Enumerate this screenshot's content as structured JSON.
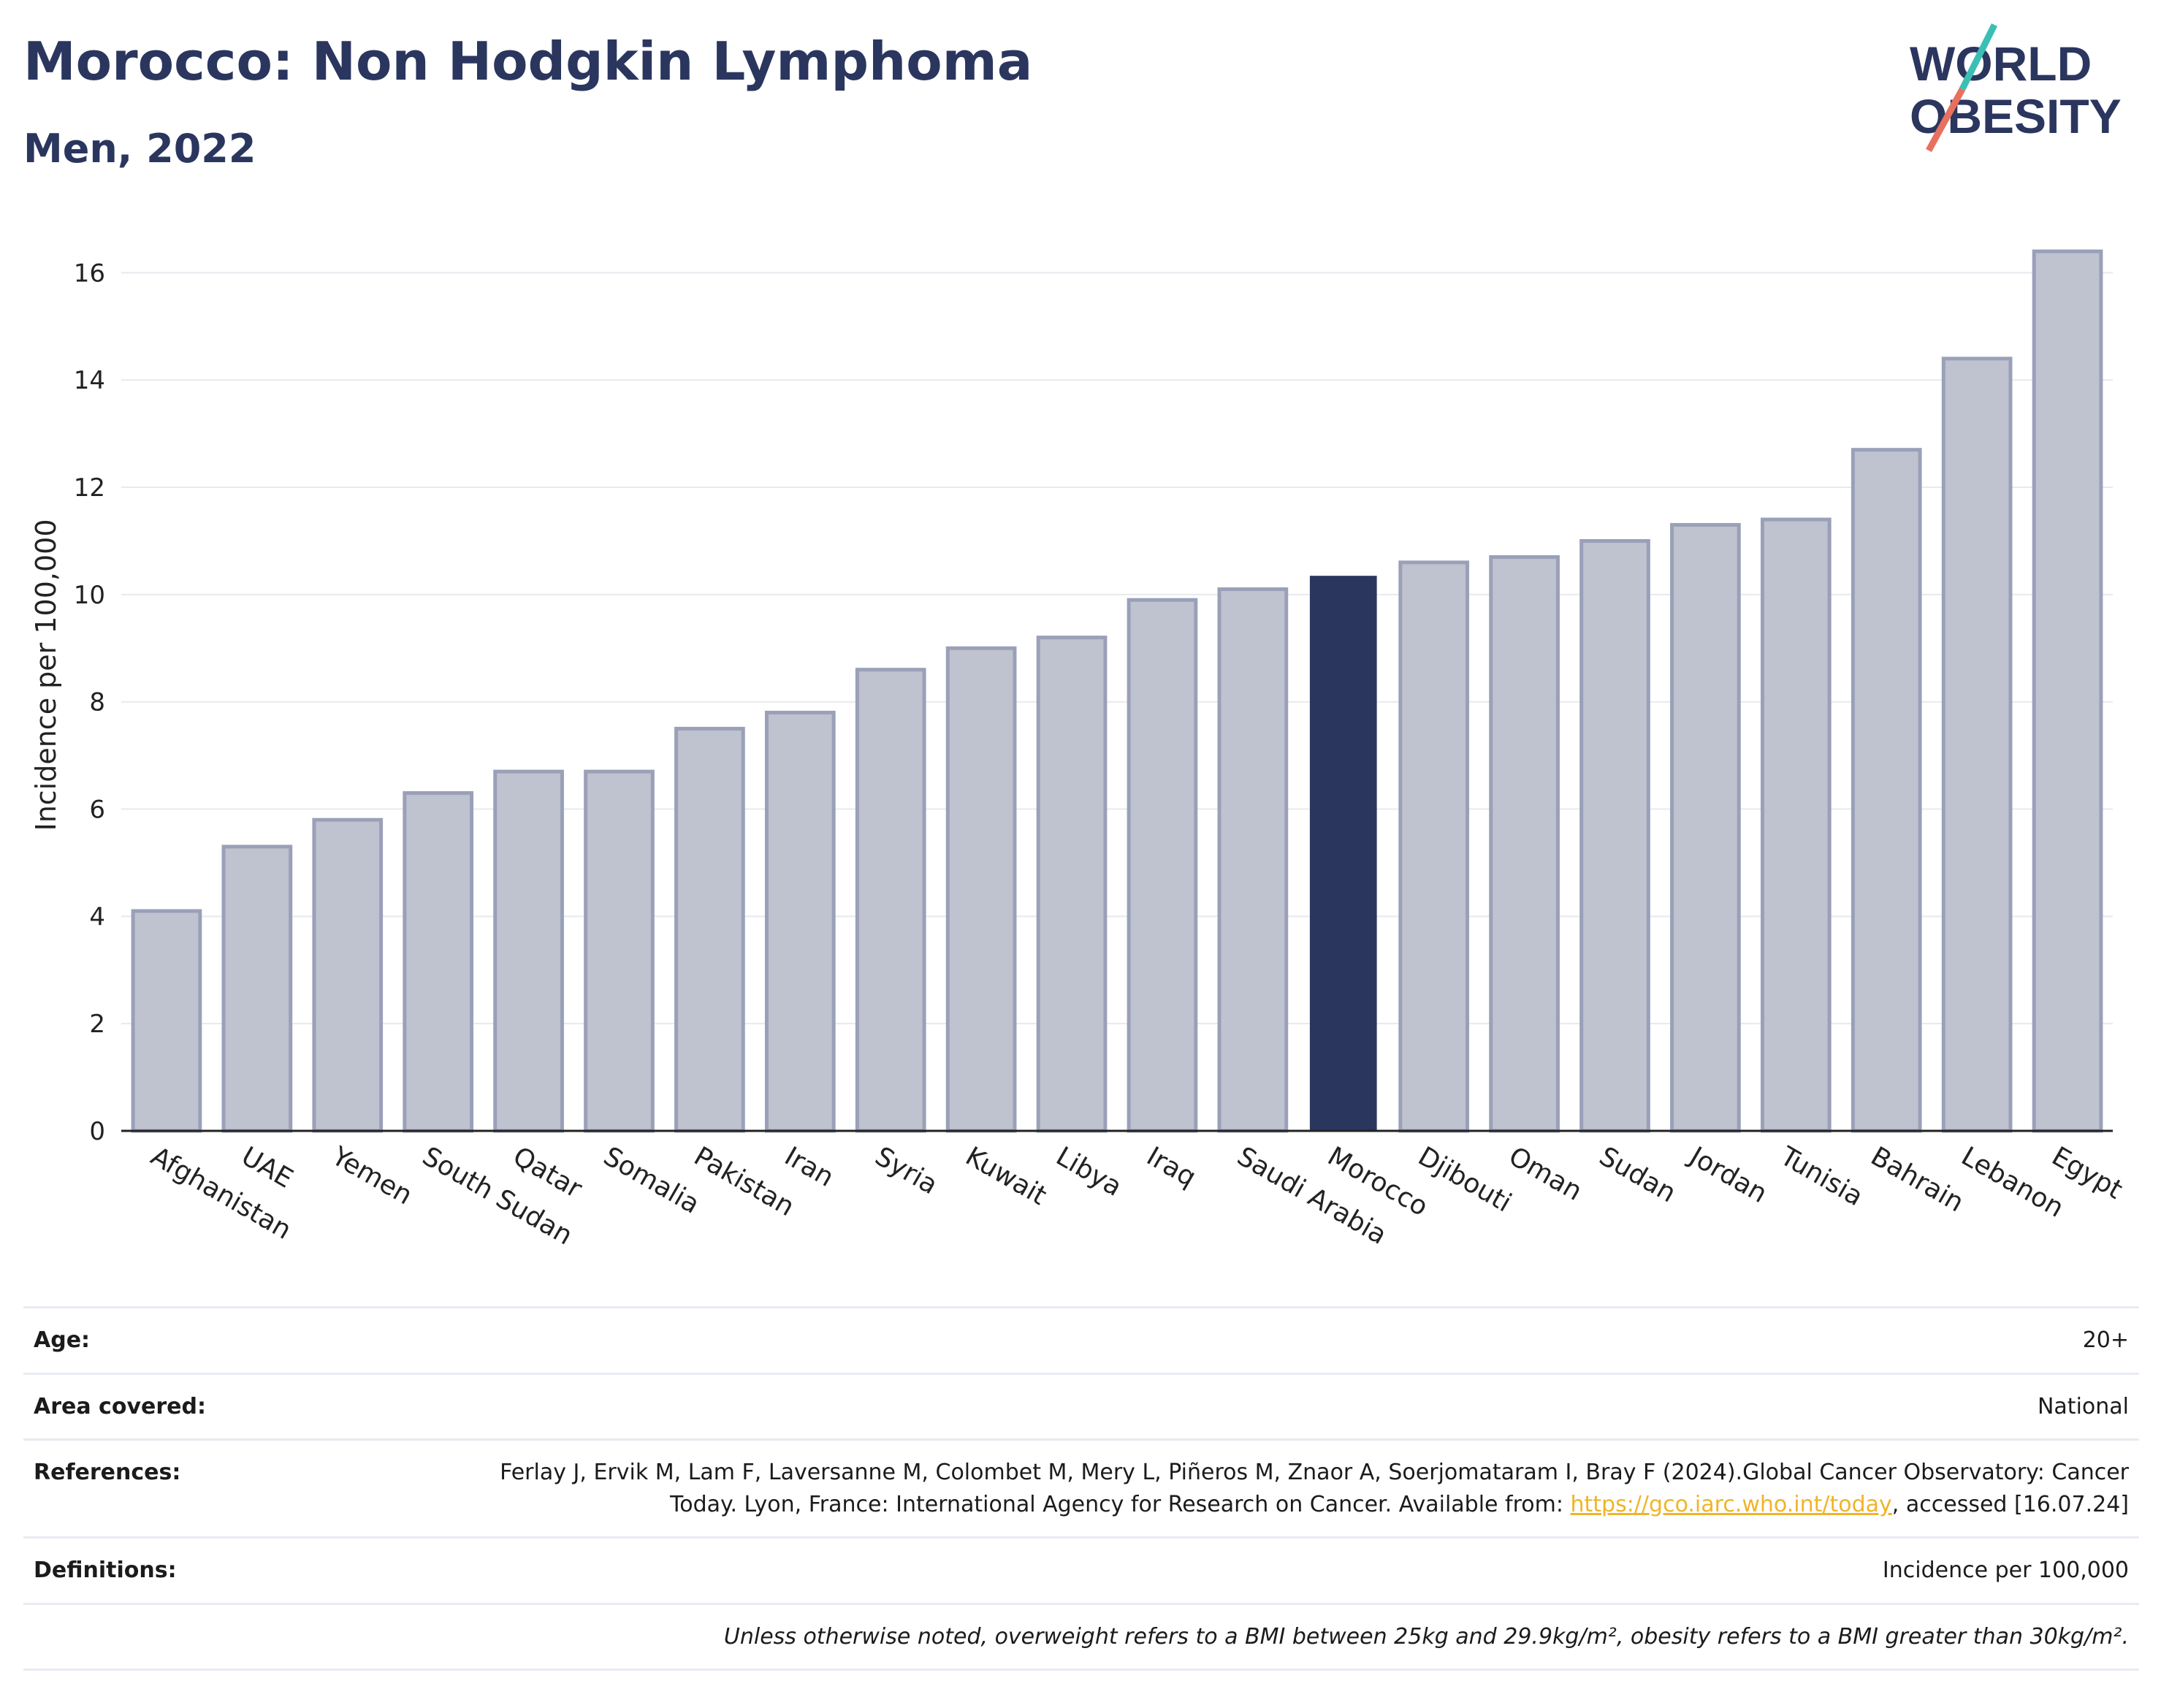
{
  "header": {
    "title": "Morocco: Non Hodgkin Lymphoma",
    "subtitle": "Men, 2022",
    "logo_line1": "WORLD",
    "logo_line2": "OBESITY"
  },
  "colors": {
    "bar": "#bfc2cf",
    "bar_stroke": "#9aa0b8",
    "highlight": "#2b365f",
    "title": "#2b365f",
    "link": "#f0b429",
    "logo_teal": "#3bbfb5",
    "logo_coral": "#e8705f"
  },
  "chart_data": {
    "type": "bar",
    "ylabel": "Incidence per 100,000",
    "ylim": [
      0,
      17
    ],
    "yticks": [
      0,
      2,
      4,
      6,
      8,
      10,
      12,
      14,
      16
    ],
    "grid": true,
    "highlight": "Morocco",
    "categories": [
      "Afghanistan",
      "UAE",
      "Yemen",
      "South Sudan",
      "Qatar",
      "Somalia",
      "Pakistan",
      "Iran",
      "Syria",
      "Kuwait",
      "Libya",
      "Iraq",
      "Saudi Arabia",
      "Morocco",
      "Djibouti",
      "Oman",
      "Sudan",
      "Jordan",
      "Tunisia",
      "Bahrain",
      "Lebanon",
      "Egypt"
    ],
    "values": [
      4.1,
      5.3,
      5.8,
      6.3,
      6.7,
      6.7,
      7.5,
      7.8,
      8.6,
      9.0,
      9.2,
      9.9,
      10.1,
      10.35,
      10.6,
      10.7,
      11.0,
      11.3,
      11.4,
      12.7,
      14.4,
      16.4
    ]
  },
  "info": {
    "age_label": "Age:",
    "age_value": "20+",
    "area_label": "Area covered:",
    "area_value": "National",
    "references_label": "References:",
    "references_text": "Ferlay J, Ervik M, Lam F, Laversanne M, Colombet M, Mery L, Piñeros M, Znaor A, Soerjomataram I, Bray F (2024).Global Cancer Observatory: Cancer Today. Lyon, France: International Agency for Research on Cancer. Available from:",
    "references_link": "https://gco.iarc.who.int/today",
    "references_tail": ", accessed [16.07.24]",
    "definitions_label": "Definitions:",
    "definitions_value": "Incidence per 100,000",
    "note": "Unless otherwise noted, overweight refers to a BMI between 25kg and 29.9kg/m², obesity refers to a BMI greater than 30kg/m²."
  }
}
